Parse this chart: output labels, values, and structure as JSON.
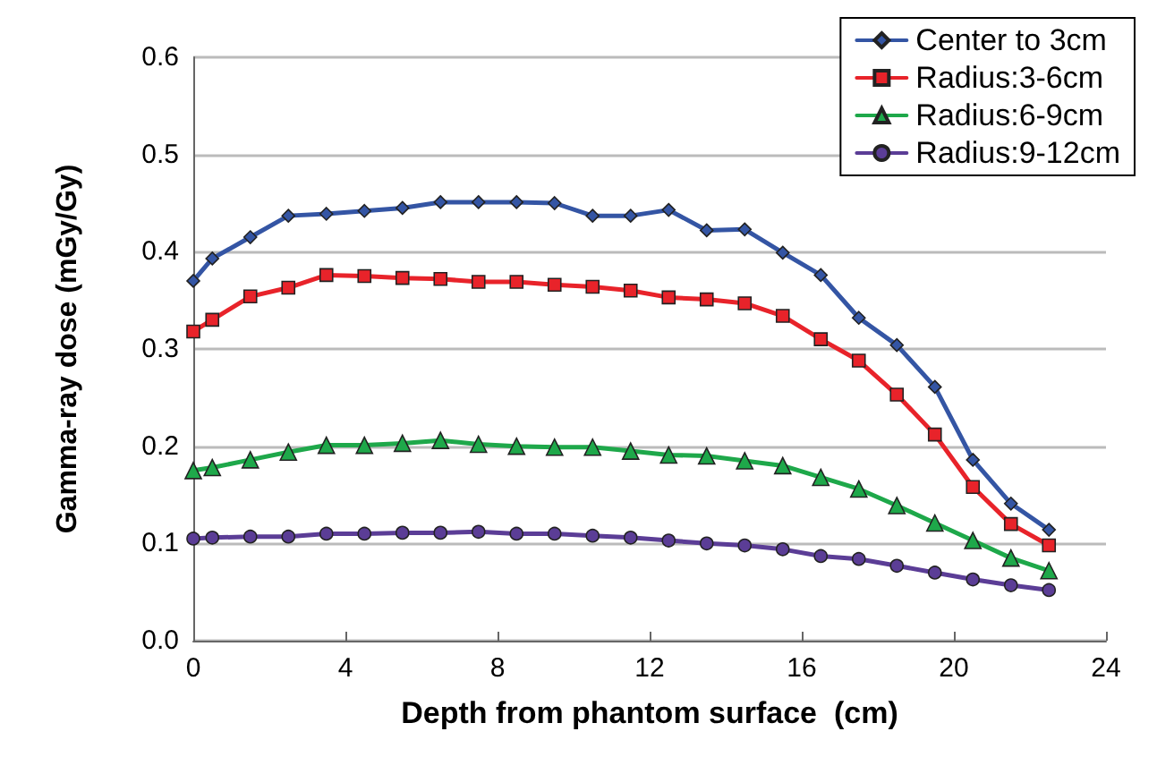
{
  "chart_data": {
    "type": "line",
    "xlabel": "Depth from phantom surface  (cm)",
    "ylabel": "Gamma-ray dose (mGy/Gy)",
    "x": [
      0,
      0.5,
      1.5,
      2.5,
      3.5,
      4.5,
      5.5,
      6.5,
      7.5,
      8.5,
      9.5,
      10.5,
      11.5,
      12.5,
      13.5,
      14.5,
      15.5,
      16.5,
      17.5,
      18.5,
      19.5,
      20.5,
      21.5,
      22.5
    ],
    "series": [
      {
        "name": "Center to 3cm",
        "color": "#3455a4",
        "marker": "diamond",
        "values": [
          0.37,
          0.393,
          0.415,
          0.437,
          0.439,
          0.442,
          0.445,
          0.451,
          0.451,
          0.451,
          0.45,
          0.437,
          0.437,
          0.443,
          0.422,
          0.423,
          0.399,
          0.376,
          0.332,
          0.304,
          0.261,
          0.186,
          0.141,
          0.114
        ]
      },
      {
        "name": "Radius:3-6cm",
        "color": "#e8232a",
        "marker": "square",
        "values": [
          0.318,
          0.33,
          0.354,
          0.363,
          0.376,
          0.375,
          0.373,
          0.372,
          0.369,
          0.369,
          0.366,
          0.364,
          0.36,
          0.353,
          0.351,
          0.347,
          0.334,
          0.31,
          0.288,
          0.253,
          0.212,
          0.158,
          0.12,
          0.098
        ]
      },
      {
        "name": "Radius:6-9cm",
        "color": "#1ea84a",
        "marker": "triangle",
        "values": [
          0.175,
          0.178,
          0.186,
          0.194,
          0.201,
          0.201,
          0.203,
          0.206,
          0.202,
          0.2,
          0.199,
          0.199,
          0.195,
          0.191,
          0.19,
          0.185,
          0.18,
          0.168,
          0.156,
          0.139,
          0.121,
          0.103,
          0.085,
          0.072
        ]
      },
      {
        "name": "Radius:9-12cm",
        "color": "#5b3d96",
        "marker": "circle",
        "values": [
          0.105,
          0.106,
          0.107,
          0.107,
          0.11,
          0.11,
          0.111,
          0.111,
          0.112,
          0.11,
          0.11,
          0.108,
          0.106,
          0.103,
          0.1,
          0.098,
          0.094,
          0.087,
          0.084,
          0.077,
          0.07,
          0.063,
          0.057,
          0.052
        ]
      }
    ],
    "xlim": [
      0,
      24
    ],
    "xticks": [
      0,
      4,
      8,
      12,
      16,
      20,
      24
    ],
    "ylim": [
      0,
      0.6
    ],
    "yticks": [
      {
        "value": 0,
        "label": "0.0"
      },
      {
        "value": 0.1,
        "label": "0.1"
      },
      {
        "value": 0.2,
        "label": "0.2"
      },
      {
        "value": 0.3,
        "label": "0.3"
      },
      {
        "value": 0.4,
        "label": "0.4"
      },
      {
        "value": 0.5,
        "label": "0.5"
      },
      {
        "value": 0.6,
        "label": "0.6"
      }
    ],
    "grid": "y",
    "legend": "top right"
  }
}
